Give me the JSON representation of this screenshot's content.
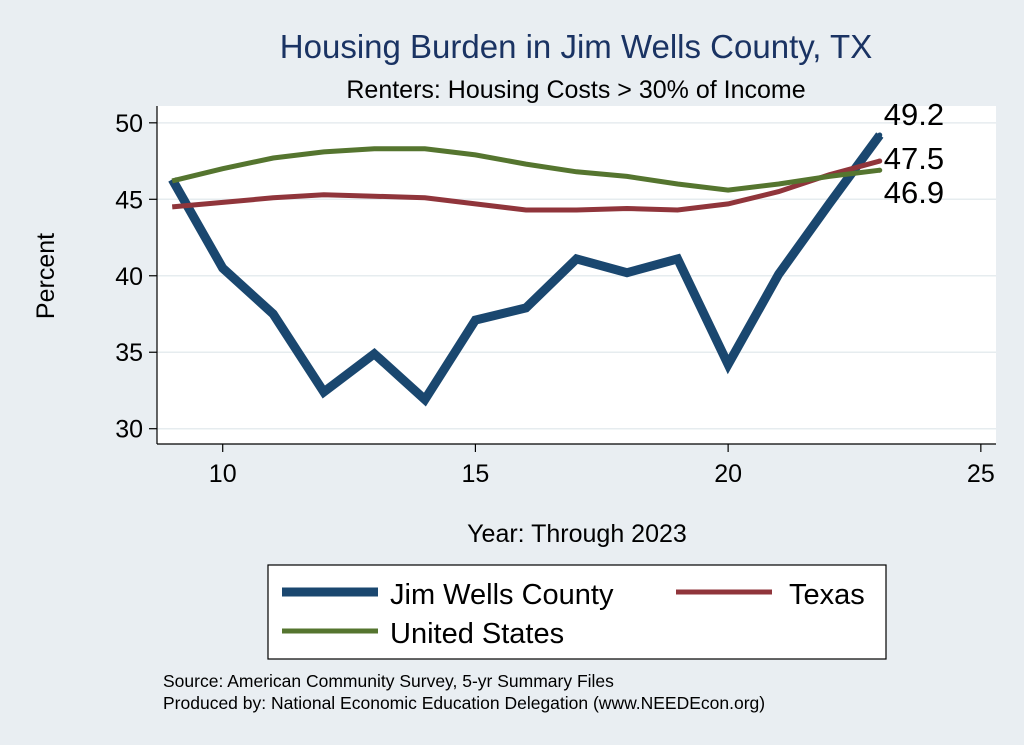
{
  "chart_data": {
    "type": "line",
    "title": "Housing Burden in Jim Wells County, TX",
    "subtitle": "Renters: Housing Costs > 30% of Income",
    "xlabel": "Year: Through 2023",
    "ylabel": "Percent",
    "xlim": [
      8.7,
      25.3
    ],
    "ylim": [
      29,
      51.1
    ],
    "xticks": [
      10,
      15,
      20,
      25
    ],
    "yticks": [
      30,
      35,
      40,
      45,
      50
    ],
    "x": [
      9,
      10,
      11,
      12,
      13,
      14,
      15,
      16,
      17,
      18,
      19,
      20,
      21,
      22,
      23
    ],
    "series": [
      {
        "name": "Jim Wells County",
        "color": "#1a476f",
        "values": [
          46.3,
          40.5,
          37.5,
          32.4,
          34.9,
          31.9,
          37.1,
          37.9,
          41.1,
          40.2,
          41.1,
          34.2,
          40.1,
          44.7,
          49.2
        ],
        "end_label": "49.2"
      },
      {
        "name": "Texas",
        "color": "#90353b",
        "values": [
          44.5,
          44.8,
          45.1,
          45.3,
          45.2,
          45.1,
          44.7,
          44.3,
          44.3,
          44.4,
          44.3,
          44.7,
          45.5,
          46.6,
          47.5
        ],
        "end_label": "47.5"
      },
      {
        "name": "United States",
        "color": "#55752f",
        "values": [
          46.2,
          47.0,
          47.7,
          48.1,
          48.3,
          48.3,
          47.9,
          47.3,
          46.8,
          46.5,
          46.0,
          45.6,
          46.0,
          46.5,
          46.9
        ],
        "end_label": "46.9"
      }
    ],
    "legend_position": "bottom",
    "grid": true
  },
  "notes": {
    "source": "Source: American Community Survey, 5-yr Summary Files",
    "produced": "Produced by: National Economic Education Delegation (www.NEEDEcon.org)"
  }
}
